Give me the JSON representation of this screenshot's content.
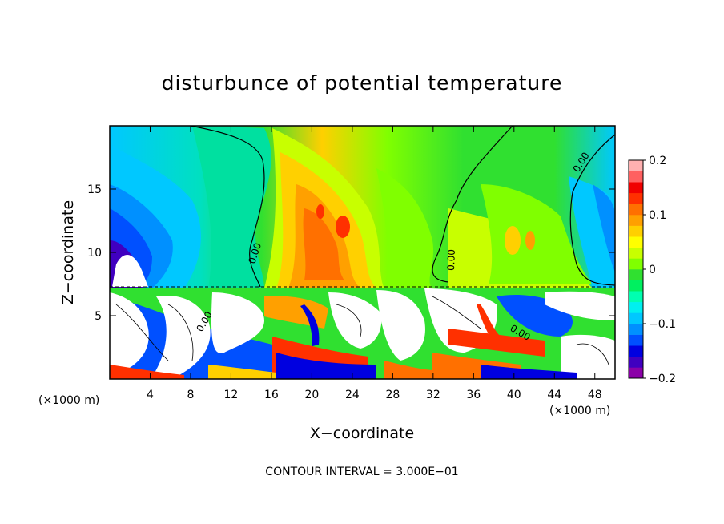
{
  "chart_data": {
    "type": "heatmap",
    "title": "disturbunce of potential temperature",
    "xlabel": "X−coordinate",
    "ylabel": "Z−coordinate",
    "x_unit": "(×1000 m)",
    "y_unit": "(×1000 m)",
    "xlim": [
      0,
      50
    ],
    "ylim": [
      0,
      20
    ],
    "x_ticks": [
      4,
      8,
      12,
      16,
      20,
      24,
      28,
      32,
      36,
      40,
      44,
      48
    ],
    "y_ticks": [
      5,
      10,
      15
    ],
    "footer": "CONTOUR INTERVAL = 3.000E−01",
    "contour_label": "0.00",
    "colorbar": {
      "range": [
        -0.2,
        0.2
      ],
      "ticks": [
        {
          "value": 0.2,
          "label": "0.2"
        },
        {
          "value": 0.1,
          "label": "0.1"
        },
        {
          "value": 0,
          "label": "0"
        },
        {
          "value": -0.1,
          "label": "−0.1"
        },
        {
          "value": -0.2,
          "label": "−0.2"
        }
      ],
      "colors": [
        "#8b00a8",
        "#4000c0",
        "#0000e0",
        "#0050ff",
        "#0090ff",
        "#00c8ff",
        "#00f0f0",
        "#00ffb0",
        "#00f060",
        "#30e030",
        "#80ff00",
        "#c8ff00",
        "#ffff00",
        "#ffd000",
        "#ffa000",
        "#ff7000",
        "#ff3000",
        "#f00000",
        "#ff6060",
        "#ffb0b0"
      ]
    }
  }
}
